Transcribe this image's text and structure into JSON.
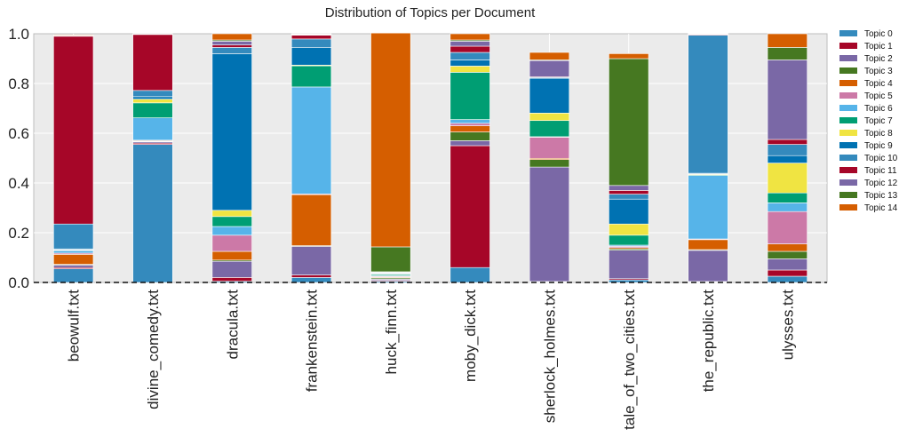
{
  "chart_data": {
    "type": "bar",
    "stacked": true,
    "title": "Distribution of Topics per Document",
    "xlabel": "",
    "ylabel": "",
    "ylim": [
      0,
      1.0
    ],
    "yticks": [
      "0.0",
      "0.2",
      "0.4",
      "0.6",
      "0.8",
      "1.0"
    ],
    "grid": true,
    "legend_position": "right",
    "categories": [
      "beowulf.txt",
      "divine_comedy.txt",
      "dracula.txt",
      "frankenstein.txt",
      "huck_finn.txt",
      "moby_dick.txt",
      "sherlock_holmes.txt",
      "tale_of_two_cities.txt",
      "the_republic.txt",
      "ulysses.txt"
    ],
    "series": [
      {
        "name": "Topic 0",
        "color": "#348ABD",
        "values": [
          0.055,
          0.555,
          0.005,
          0.02,
          0.005,
          0.06,
          0.002,
          0.01,
          0.002,
          0.025
        ]
      },
      {
        "name": "Topic 1",
        "color": "#A60628",
        "values": [
          0.005,
          0.005,
          0.015,
          0.01,
          0.003,
          0.49,
          0.002,
          0.005,
          0.002,
          0.025
        ]
      },
      {
        "name": "Topic 2",
        "color": "#7A68A6",
        "values": [
          0.01,
          0.005,
          0.065,
          0.115,
          0.005,
          0.02,
          0.46,
          0.115,
          0.125,
          0.045
        ]
      },
      {
        "name": "Topic 3",
        "color": "#467821",
        "values": [
          0.003,
          0.002,
          0.005,
          0.003,
          0.005,
          0.035,
          0.03,
          0.005,
          0.003,
          0.03
        ]
      },
      {
        "name": "Topic 4",
        "color": "#D55E00",
        "values": [
          0.04,
          0.003,
          0.035,
          0.205,
          0.003,
          0.025,
          0.005,
          0.005,
          0.04,
          0.03
        ]
      },
      {
        "name": "Topic 5",
        "color": "#CC79A7",
        "values": [
          0.005,
          0.002,
          0.065,
          0.003,
          0.003,
          0.01,
          0.085,
          0.005,
          0.003,
          0.13
        ]
      },
      {
        "name": "Topic 6",
        "color": "#56B4E9",
        "values": [
          0.01,
          0.09,
          0.035,
          0.43,
          0.003,
          0.015,
          0.002,
          0.005,
          0.255,
          0.035
        ]
      },
      {
        "name": "Topic 7",
        "color": "#009E73",
        "values": [
          0.002,
          0.06,
          0.04,
          0.085,
          0.005,
          0.19,
          0.065,
          0.04,
          0.003,
          0.04
        ]
      },
      {
        "name": "Topic 8",
        "color": "#F0E442",
        "values": [
          0.002,
          0.015,
          0.025,
          0.003,
          0.002,
          0.025,
          0.03,
          0.045,
          0.003,
          0.12
        ]
      },
      {
        "name": "Topic 9",
        "color": "#0072B2",
        "values": [
          0.003,
          0.01,
          0.63,
          0.07,
          0.002,
          0.025,
          0.14,
          0.1,
          0.003,
          0.03
        ]
      },
      {
        "name": "Topic 10",
        "color": "#348ABD",
        "values": [
          0.1,
          0.025,
          0.025,
          0.035,
          0.003,
          0.03,
          0.003,
          0.02,
          0.555,
          0.045
        ]
      },
      {
        "name": "Topic 11",
        "color": "#A60628",
        "values": [
          0.755,
          0.225,
          0.01,
          0.015,
          0.002,
          0.025,
          0.003,
          0.015,
          0.003,
          0.02
        ]
      },
      {
        "name": "Topic 12",
        "color": "#7A68A6",
        "values": [
          0.002,
          0.001,
          0.015,
          0.002,
          0.002,
          0.02,
          0.065,
          0.02,
          0.002,
          0.32
        ]
      },
      {
        "name": "Topic 13",
        "color": "#467821",
        "values": [
          0.001,
          0.001,
          0.005,
          0.002,
          0.1,
          0.005,
          0.003,
          0.51,
          0.002,
          0.05
        ]
      },
      {
        "name": "Topic 14",
        "color": "#D55E00",
        "values": [
          0.003,
          0.001,
          0.025,
          0.002,
          0.86,
          0.025,
          0.03,
          0.02,
          0.001,
          0.055
        ]
      }
    ]
  }
}
